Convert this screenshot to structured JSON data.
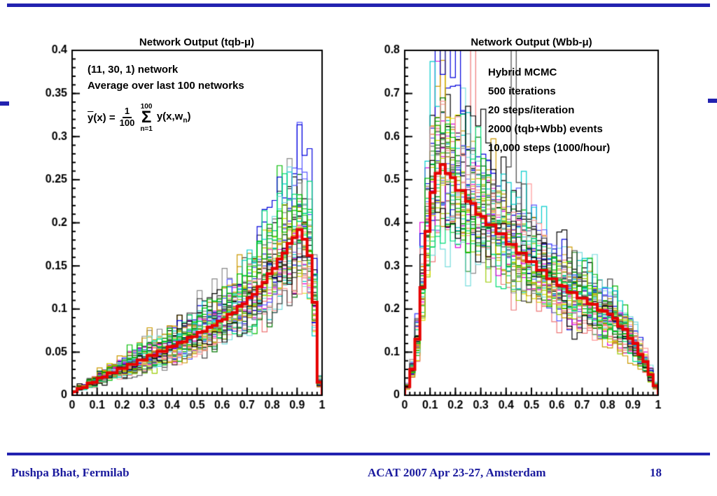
{
  "slide": {
    "accent_color": "#2222b0",
    "footer_text_color": "#1b1b9e",
    "footer": {
      "left": "Pushpa Bhat, Fermilab",
      "center": "ACAT 2007 Apr 23-27, Amsterdam",
      "page": "18"
    }
  },
  "chart_data": [
    {
      "type": "line",
      "subtype": "histogram-ensemble",
      "title": "Network Output (tqb-μ)",
      "annotations": [
        "(11, 30, 1) network",
        "Average over last 100 networks"
      ],
      "formula": {
        "lhs_y": "y",
        "lhs_rest": "(x) =",
        "frac_num": "1",
        "frac_den": "100",
        "sum_symbol": "Σ",
        "sum_upper": "100",
        "sum_lower": "n=1",
        "term": "y(x,w",
        "term_sub": "n",
        "term_close": ")"
      },
      "xlim": [
        0,
        1
      ],
      "ylim": [
        0,
        0.4
      ],
      "grid": false,
      "legend": null,
      "x_tick_values": [
        0,
        0.1,
        0.2,
        0.3,
        0.4,
        0.5,
        0.6,
        0.7,
        0.8,
        0.9,
        1
      ],
      "x_tick_labels": [
        "0",
        "0.1",
        "0.2",
        "0.3",
        "0.4",
        "0.5",
        "0.6",
        "0.7",
        "0.8",
        "0.9",
        "1"
      ],
      "y_tick_values": [
        0,
        0.05,
        0.1,
        0.15,
        0.2,
        0.25,
        0.3,
        0.35,
        0.4
      ],
      "y_tick_labels": [
        "0",
        "0.05",
        "0.1",
        "0.15",
        "0.2",
        "0.25",
        "0.3",
        "0.35",
        "0.4"
      ],
      "x_minor_step": 0.02,
      "y_minor_step": 0.01,
      "bins": 50,
      "mean_series": {
        "name": "Average over last 100 networks",
        "color": "#e60000",
        "values": [
          0.004,
          0.008,
          0.009,
          0.014,
          0.015,
          0.02,
          0.021,
          0.026,
          0.026,
          0.031,
          0.031,
          0.036,
          0.036,
          0.041,
          0.041,
          0.046,
          0.046,
          0.051,
          0.051,
          0.056,
          0.057,
          0.061,
          0.062,
          0.067,
          0.068,
          0.073,
          0.074,
          0.079,
          0.081,
          0.086,
          0.088,
          0.094,
          0.096,
          0.103,
          0.106,
          0.113,
          0.117,
          0.126,
          0.131,
          0.141,
          0.147,
          0.158,
          0.165,
          0.176,
          0.183,
          0.192,
          0.181,
          0.162,
          0.108,
          0.015
        ]
      },
      "ensemble": {
        "count": 50,
        "relative_spread": 0.35,
        "colors": [
          "#000000",
          "#00bb00",
          "#0000dd",
          "#00cccc",
          "#dd00dd",
          "#dddd00",
          "#888888",
          "#ee7777",
          "#007700",
          "#5555ff",
          "#77dddd",
          "#cc9900",
          "#99cc00",
          "#ff9999",
          "#444444",
          "#00dd77"
        ]
      }
    },
    {
      "type": "line",
      "subtype": "histogram-ensemble",
      "title": "Network Output (Wbb-μ)",
      "annotations": [
        "Hybrid MCMC",
        "500 iterations",
        "20 steps/iteration",
        "2000 (tqb+Wbb) events",
        "10,000 steps (1000/hour)"
      ],
      "xlim": [
        0,
        1
      ],
      "ylim": [
        0,
        0.8
      ],
      "grid": false,
      "legend": null,
      "x_tick_values": [
        0,
        0.1,
        0.2,
        0.3,
        0.4,
        0.5,
        0.6,
        0.7,
        0.8,
        0.9,
        1
      ],
      "x_tick_labels": [
        "0",
        "0.1",
        "0.2",
        "0.3",
        "0.4",
        "0.5",
        "0.6",
        "0.7",
        "0.8",
        "0.9",
        "1"
      ],
      "y_tick_values": [
        0,
        0.1,
        0.2,
        0.3,
        0.4,
        0.5,
        0.6,
        0.7,
        0.8
      ],
      "y_tick_labels": [
        "0",
        "0.1",
        "0.2",
        "0.3",
        "0.4",
        "0.5",
        "0.6",
        "0.7",
        "0.8"
      ],
      "x_minor_step": 0.02,
      "y_minor_step": 0.02,
      "bins": 50,
      "mean_series": {
        "name": "Average over last 100 networks",
        "color": "#e60000",
        "values": [
          0.02,
          0.06,
          0.13,
          0.25,
          0.38,
          0.47,
          0.515,
          0.535,
          0.515,
          0.505,
          0.475,
          0.475,
          0.45,
          0.445,
          0.42,
          0.415,
          0.395,
          0.395,
          0.375,
          0.375,
          0.35,
          0.35,
          0.33,
          0.33,
          0.31,
          0.31,
          0.29,
          0.29,
          0.27,
          0.27,
          0.255,
          0.253,
          0.239,
          0.238,
          0.225,
          0.225,
          0.212,
          0.211,
          0.197,
          0.195,
          0.188,
          0.178,
          0.16,
          0.153,
          0.132,
          0.12,
          0.095,
          0.078,
          0.048,
          0.022
        ]
      },
      "ensemble": {
        "count": 50,
        "relative_spread": 0.33,
        "colors": [
          "#000000",
          "#00bb00",
          "#0000dd",
          "#00cccc",
          "#dd00dd",
          "#dddd00",
          "#888888",
          "#ee7777",
          "#007700",
          "#5555ff",
          "#77dddd",
          "#cc9900",
          "#99cc00",
          "#ff9999",
          "#444444",
          "#00dd77"
        ]
      }
    }
  ]
}
